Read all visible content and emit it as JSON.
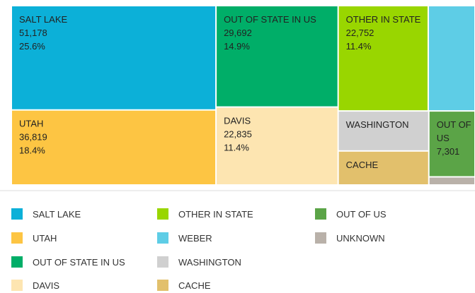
{
  "chart_data": {
    "type": "treemap",
    "categories": [
      "SALT LAKE",
      "UTAH",
      "OUT OF STATE IN US",
      "DAVIS",
      "OTHER IN STATE",
      "WEBER",
      "WASHINGTON",
      "CACHE",
      "OUT OF US",
      "UNKNOWN"
    ],
    "values": [
      51178,
      36819,
      29692,
      22835,
      22752,
      11800,
      8700,
      7400,
      7301,
      900
    ],
    "value_labels": [
      "51,178",
      "36,819",
      "29,692",
      "22,835",
      "22,752",
      null,
      null,
      null,
      "7,301",
      null
    ],
    "percent_labels": [
      "25.6%",
      "18.4%",
      "14.9%",
      "11.4%",
      "11.4%",
      null,
      null,
      null,
      null,
      null
    ],
    "colors": [
      "#0cb0d8",
      "#fdc543",
      "#00ae68",
      "#fde5b1",
      "#99d600",
      "#5ecde6",
      "#d0d0d0",
      "#e2c06c",
      "#5ba447",
      "#b9b1a9"
    ],
    "legend": true
  }
}
